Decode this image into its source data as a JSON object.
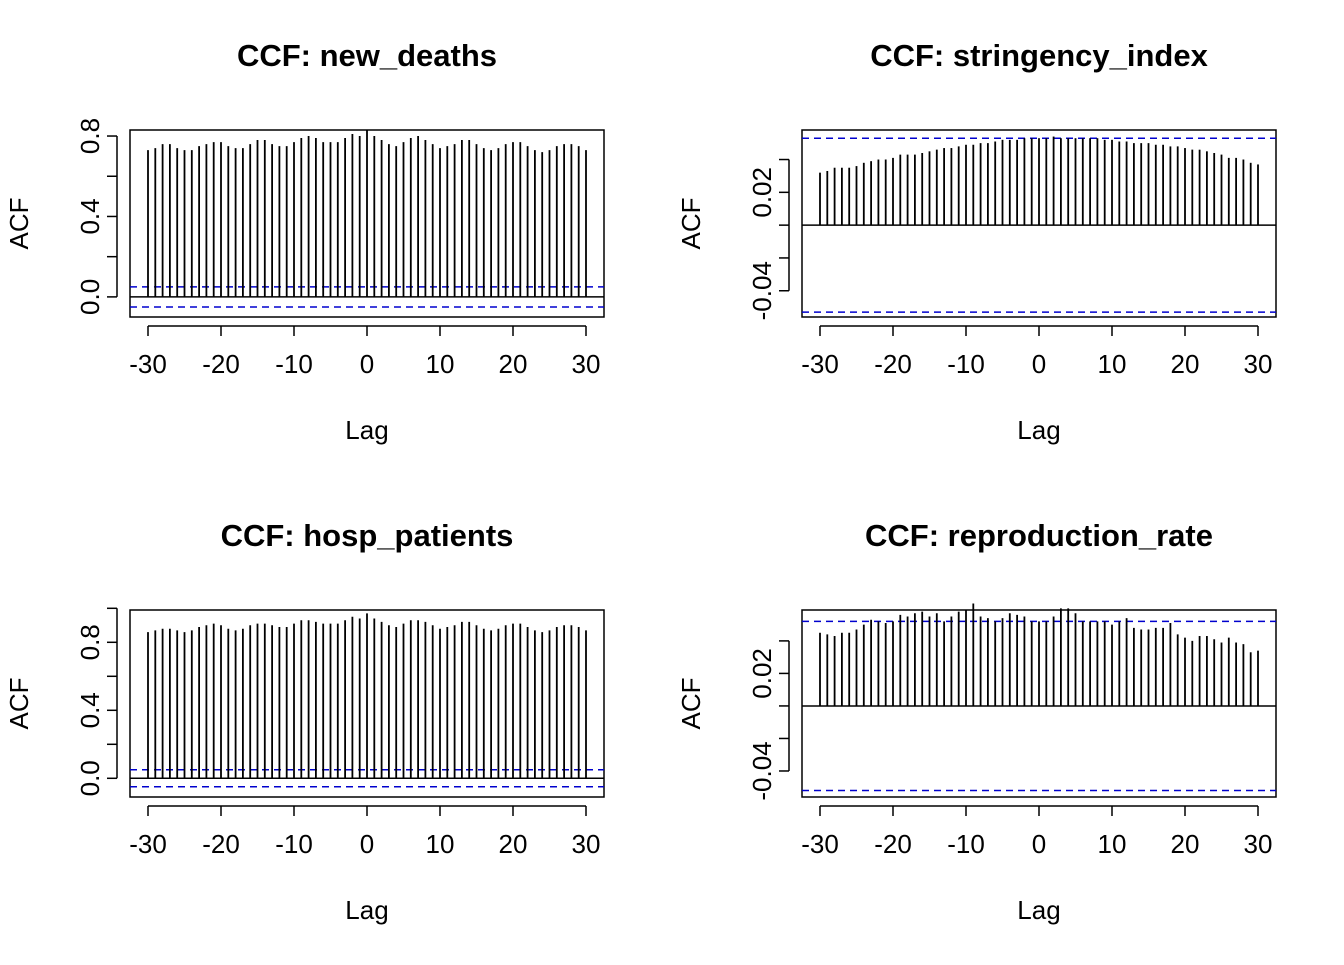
{
  "chart_data": [
    {
      "type": "bar",
      "title": "CCF: new_deaths",
      "xlabel": "Lag",
      "ylabel": "ACF",
      "xlim": [
        -30,
        30
      ],
      "ylim": [
        -0.1,
        0.83
      ],
      "xticks": [
        -30,
        -20,
        -10,
        0,
        10,
        20,
        30
      ],
      "xtick_labels": [
        "-30",
        "-20",
        "-10",
        "0",
        "10",
        "20",
        "30"
      ],
      "yticks": [
        0.0,
        0.2,
        0.4,
        0.6,
        0.8
      ],
      "ytick_labels": [
        "0.0",
        "0.4",
        "0.8"
      ],
      "ytick_labeled": [
        0.0,
        0.4,
        0.8
      ],
      "confidence_bounds": [
        0.05,
        -0.05
      ],
      "lags": [
        -30,
        -29,
        -28,
        -27,
        -26,
        -25,
        -24,
        -23,
        -22,
        -21,
        -20,
        -19,
        -18,
        -17,
        -16,
        -15,
        -14,
        -13,
        -12,
        -11,
        -10,
        -9,
        -8,
        -7,
        -6,
        -5,
        -4,
        -3,
        -2,
        -1,
        0,
        1,
        2,
        3,
        4,
        5,
        6,
        7,
        8,
        9,
        10,
        11,
        12,
        13,
        14,
        15,
        16,
        17,
        18,
        19,
        20,
        21,
        22,
        23,
        24,
        25,
        26,
        27,
        28,
        29,
        30
      ],
      "values": [
        0.73,
        0.74,
        0.76,
        0.76,
        0.74,
        0.73,
        0.73,
        0.75,
        0.76,
        0.77,
        0.77,
        0.75,
        0.74,
        0.74,
        0.76,
        0.78,
        0.78,
        0.76,
        0.75,
        0.75,
        0.77,
        0.79,
        0.8,
        0.79,
        0.77,
        0.77,
        0.77,
        0.79,
        0.81,
        0.8,
        0.83,
        0.8,
        0.78,
        0.76,
        0.75,
        0.77,
        0.79,
        0.8,
        0.78,
        0.76,
        0.74,
        0.75,
        0.76,
        0.78,
        0.78,
        0.76,
        0.74,
        0.73,
        0.74,
        0.76,
        0.77,
        0.77,
        0.75,
        0.73,
        0.72,
        0.73,
        0.75,
        0.76,
        0.76,
        0.75,
        0.73
      ]
    },
    {
      "type": "bar",
      "title": "CCF: stringency_index",
      "xlabel": "Lag",
      "ylabel": "ACF",
      "xlim": [
        -30,
        30
      ],
      "ylim": [
        -0.056,
        0.058
      ],
      "xticks": [
        -30,
        -20,
        -10,
        0,
        10,
        20,
        30
      ],
      "xtick_labels": [
        "-30",
        "-20",
        "-10",
        "0",
        "10",
        "20",
        "30"
      ],
      "yticks": [
        -0.04,
        -0.02,
        0.0,
        0.02,
        0.04
      ],
      "ytick_labels": [
        "-0.04",
        "0.02"
      ],
      "ytick_labeled": [
        -0.04,
        0.02
      ],
      "confidence_bounds": [
        0.053,
        -0.053
      ],
      "lags": [
        -30,
        -29,
        -28,
        -27,
        -26,
        -25,
        -24,
        -23,
        -22,
        -21,
        -20,
        -19,
        -18,
        -17,
        -16,
        -15,
        -14,
        -13,
        -12,
        -11,
        -10,
        -9,
        -8,
        -7,
        -6,
        -5,
        -4,
        -3,
        -2,
        -1,
        0,
        1,
        2,
        3,
        4,
        5,
        6,
        7,
        8,
        9,
        10,
        11,
        12,
        13,
        14,
        15,
        16,
        17,
        18,
        19,
        20,
        21,
        22,
        23,
        24,
        25,
        26,
        27,
        28,
        29,
        30
      ],
      "values": [
        0.032,
        0.033,
        0.035,
        0.035,
        0.035,
        0.036,
        0.038,
        0.039,
        0.04,
        0.04,
        0.041,
        0.043,
        0.043,
        0.043,
        0.044,
        0.045,
        0.046,
        0.047,
        0.047,
        0.048,
        0.049,
        0.049,
        0.05,
        0.05,
        0.051,
        0.052,
        0.052,
        0.052,
        0.053,
        0.053,
        0.053,
        0.053,
        0.054,
        0.053,
        0.053,
        0.053,
        0.053,
        0.053,
        0.053,
        0.052,
        0.052,
        0.051,
        0.051,
        0.05,
        0.05,
        0.05,
        0.049,
        0.049,
        0.048,
        0.048,
        0.047,
        0.046,
        0.046,
        0.045,
        0.044,
        0.043,
        0.041,
        0.041,
        0.04,
        0.038,
        0.037
      ]
    },
    {
      "type": "bar",
      "title": "CCF: hosp_patients",
      "xlabel": "Lag",
      "ylabel": "ACF",
      "xlim": [
        -30,
        30
      ],
      "ylim": [
        -0.11,
        0.99
      ],
      "xticks": [
        -30,
        -20,
        -10,
        0,
        10,
        20,
        30
      ],
      "xtick_labels": [
        "-30",
        "-20",
        "-10",
        "0",
        "10",
        "20",
        "30"
      ],
      "yticks": [
        0.0,
        0.2,
        0.4,
        0.6,
        0.8,
        1.0
      ],
      "ytick_labels": [
        "0.0",
        "0.4",
        "0.8"
      ],
      "ytick_labeled": [
        0.0,
        0.4,
        0.8
      ],
      "confidence_bounds": [
        0.05,
        -0.05
      ],
      "lags": [
        -30,
        -29,
        -28,
        -27,
        -26,
        -25,
        -24,
        -23,
        -22,
        -21,
        -20,
        -19,
        -18,
        -17,
        -16,
        -15,
        -14,
        -13,
        -12,
        -11,
        -10,
        -9,
        -8,
        -7,
        -6,
        -5,
        -4,
        -3,
        -2,
        -1,
        0,
        1,
        2,
        3,
        4,
        5,
        6,
        7,
        8,
        9,
        10,
        11,
        12,
        13,
        14,
        15,
        16,
        17,
        18,
        19,
        20,
        21,
        22,
        23,
        24,
        25,
        26,
        27,
        28,
        29,
        30
      ],
      "values": [
        0.86,
        0.87,
        0.88,
        0.88,
        0.87,
        0.86,
        0.87,
        0.89,
        0.9,
        0.91,
        0.9,
        0.88,
        0.87,
        0.88,
        0.9,
        0.91,
        0.91,
        0.9,
        0.89,
        0.89,
        0.91,
        0.93,
        0.93,
        0.92,
        0.91,
        0.91,
        0.91,
        0.93,
        0.95,
        0.94,
        0.97,
        0.94,
        0.92,
        0.9,
        0.89,
        0.91,
        0.93,
        0.93,
        0.92,
        0.9,
        0.88,
        0.89,
        0.9,
        0.92,
        0.92,
        0.9,
        0.88,
        0.87,
        0.88,
        0.9,
        0.91,
        0.91,
        0.89,
        0.87,
        0.86,
        0.87,
        0.89,
        0.9,
        0.9,
        0.89,
        0.87
      ]
    },
    {
      "type": "bar",
      "title": "CCF: reproduction_rate",
      "xlabel": "Lag",
      "ylabel": "ACF",
      "xlim": [
        -30,
        30
      ],
      "ylim": [
        -0.056,
        0.059
      ],
      "xticks": [
        -30,
        -20,
        -10,
        0,
        10,
        20,
        30
      ],
      "xtick_labels": [
        "-30",
        "-20",
        "-10",
        "0",
        "10",
        "20",
        "30"
      ],
      "yticks": [
        -0.04,
        -0.02,
        0.0,
        0.02,
        0.04
      ],
      "ytick_labels": [
        "-0.04",
        "0.02"
      ],
      "ytick_labeled": [
        -0.04,
        0.02
      ],
      "confidence_bounds": [
        0.052,
        -0.052
      ],
      "lags": [
        -30,
        -29,
        -28,
        -27,
        -26,
        -25,
        -24,
        -23,
        -22,
        -21,
        -20,
        -19,
        -18,
        -17,
        -16,
        -15,
        -14,
        -13,
        -12,
        -11,
        -10,
        -9,
        -8,
        -7,
        -6,
        -5,
        -4,
        -3,
        -2,
        -1,
        0,
        1,
        2,
        3,
        4,
        5,
        6,
        7,
        8,
        9,
        10,
        11,
        12,
        13,
        14,
        15,
        16,
        17,
        18,
        19,
        20,
        21,
        22,
        23,
        24,
        25,
        26,
        27,
        28,
        29,
        30
      ],
      "values": [
        0.045,
        0.044,
        0.043,
        0.045,
        0.045,
        0.047,
        0.05,
        0.053,
        0.052,
        0.051,
        0.052,
        0.056,
        0.055,
        0.057,
        0.058,
        0.055,
        0.057,
        0.052,
        0.055,
        0.058,
        0.059,
        0.063,
        0.055,
        0.054,
        0.052,
        0.054,
        0.057,
        0.056,
        0.055,
        0.052,
        0.052,
        0.052,
        0.055,
        0.06,
        0.06,
        0.057,
        0.052,
        0.052,
        0.052,
        0.052,
        0.05,
        0.052,
        0.054,
        0.048,
        0.047,
        0.047,
        0.048,
        0.048,
        0.051,
        0.044,
        0.042,
        0.04,
        0.043,
        0.043,
        0.041,
        0.039,
        0.042,
        0.039,
        0.038,
        0.033,
        0.034
      ]
    }
  ]
}
